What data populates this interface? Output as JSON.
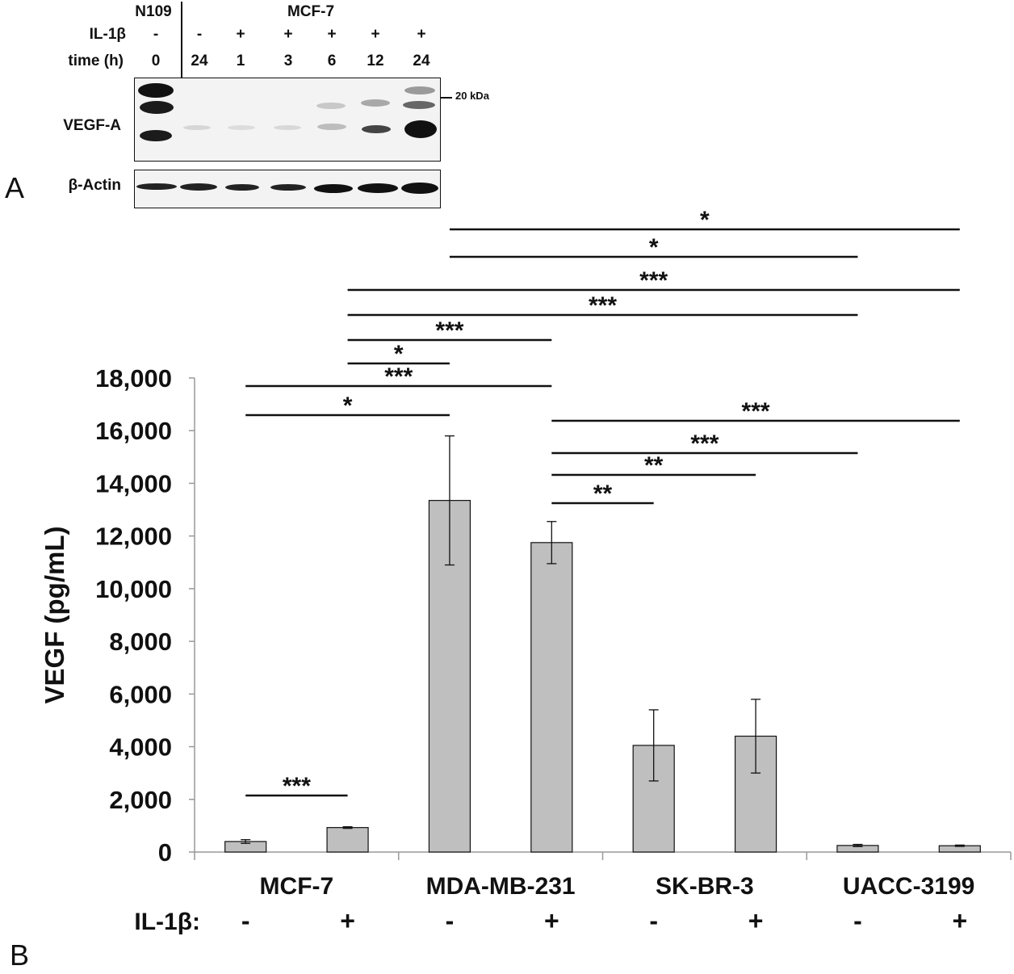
{
  "panel_a": {
    "letter": "A",
    "control_cell_line": "N109",
    "treated_cell_line": "MCF-7",
    "row_labels": {
      "treatment": "IL-1β",
      "time": "time (h)"
    },
    "lanes": [
      {
        "il1b": "-",
        "time": "0"
      },
      {
        "il1b": "-",
        "time": "24"
      },
      {
        "il1b": "+",
        "time": "1"
      },
      {
        "il1b": "+",
        "time": "3"
      },
      {
        "il1b": "+",
        "time": "6"
      },
      {
        "il1b": "+",
        "time": "12"
      },
      {
        "il1b": "+",
        "time": "24"
      }
    ],
    "blots": [
      {
        "label": "VEGF-A",
        "marker": "20 kDa"
      },
      {
        "label": "β-Actin"
      }
    ]
  },
  "chart_data": {
    "type": "bar",
    "panel_letter": "B",
    "ylabel": "VEGF (pg/mL)",
    "ylim": [
      0,
      18000
    ],
    "yticks": [
      "0",
      "2,000",
      "4,000",
      "6,000",
      "8,000",
      "10,000",
      "12,000",
      "14,000",
      "16,000",
      "18,000"
    ],
    "groups": [
      "MCF-7",
      "MDA-MB-231",
      "SK-BR-3",
      "UACC-3199"
    ],
    "treatment_label": "IL-1β:",
    "bars": [
      {
        "group": "MCF-7",
        "il1b": "-",
        "value": 400,
        "error": 70
      },
      {
        "group": "MCF-7",
        "il1b": "+",
        "value": 930,
        "error": 30
      },
      {
        "group": "MDA-MB-231",
        "il1b": "-",
        "value": 13350,
        "error": 2450
      },
      {
        "group": "MDA-MB-231",
        "il1b": "+",
        "value": 11750,
        "error": 800
      },
      {
        "group": "SK-BR-3",
        "il1b": "-",
        "value": 4050,
        "error": 1350
      },
      {
        "group": "SK-BR-3",
        "il1b": "+",
        "value": 4400,
        "error": 1400
      },
      {
        "group": "UACC-3199",
        "il1b": "-",
        "value": 250,
        "error": 40
      },
      {
        "group": "UACC-3199",
        "il1b": "+",
        "value": 240,
        "error": 25
      }
    ],
    "significance": [
      {
        "from": 2,
        "to": 7,
        "label": "*"
      },
      {
        "from": 2,
        "to": 6,
        "label": "*"
      },
      {
        "from": 1,
        "to": 7,
        "label": "***"
      },
      {
        "from": 1,
        "to": 6,
        "label": "***"
      },
      {
        "from": 1,
        "to": 3,
        "label": "***"
      },
      {
        "from": 1,
        "to": 2,
        "label": "*"
      },
      {
        "from": 0,
        "to": 3,
        "label": "***"
      },
      {
        "from": 0,
        "to": 2,
        "label": "*"
      },
      {
        "from": 3,
        "to": 7,
        "label": "***"
      },
      {
        "from": 3,
        "to": 6,
        "label": "***"
      },
      {
        "from": 3,
        "to": 5,
        "label": "**"
      },
      {
        "from": 3,
        "to": 4,
        "label": "**"
      },
      {
        "from": 0,
        "to": 1,
        "label": "***"
      }
    ],
    "colors": {
      "bar": "#bfbfbf",
      "axis": "#999999",
      "ink": "#111111"
    }
  }
}
